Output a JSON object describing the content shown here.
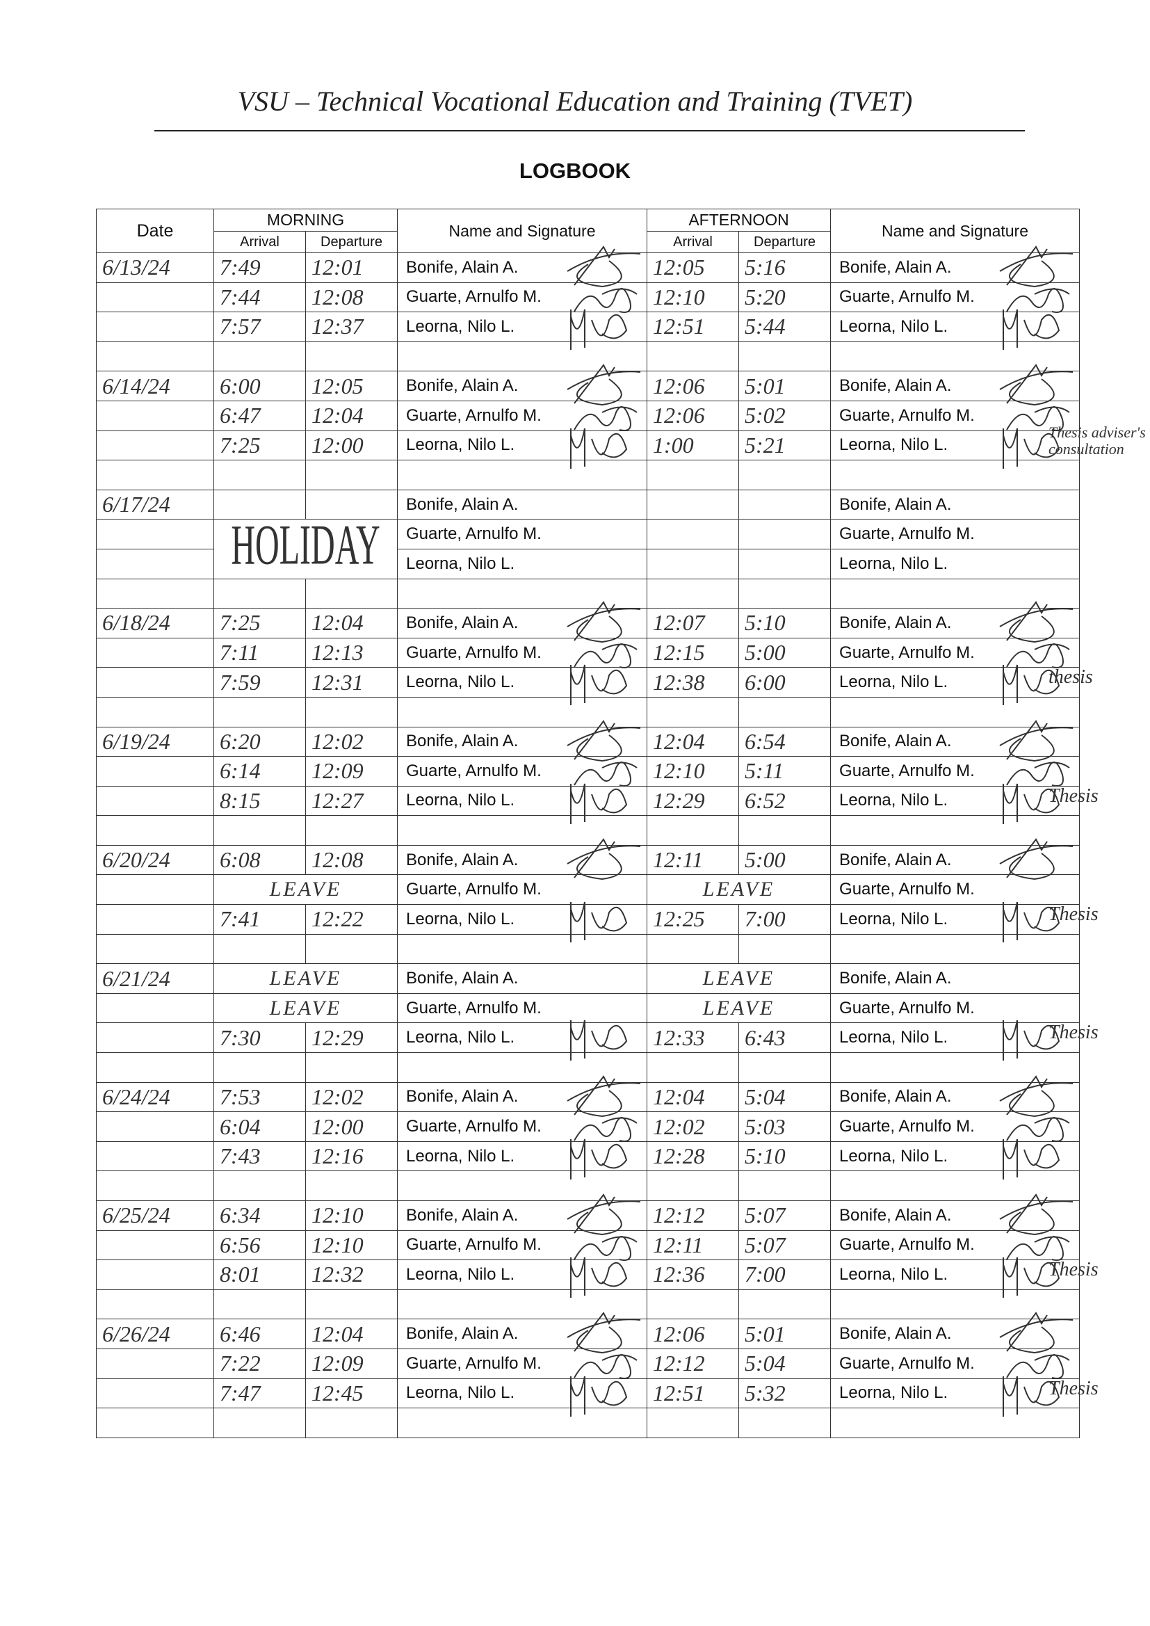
{
  "header": {
    "title": "VSU – Technical Vocational Education and Training (TVET)",
    "subtitle": "LOGBOOK"
  },
  "columns": {
    "date": "Date",
    "morning": "MORNING",
    "afternoon": "AFTERNOON",
    "arrival": "Arrival",
    "departure": "Departure",
    "name_signature": "Name and Signature"
  },
  "people": [
    "Bonife, Alain A.",
    "Guarte, Arnulfo M.",
    "Leorna, Nilo L."
  ],
  "days": [
    {
      "date": "6/13/24",
      "rows": [
        [
          "7:49",
          "12:01",
          "12:05",
          "5:16"
        ],
        [
          "7:44",
          "12:08",
          "12:10",
          "5:20"
        ],
        [
          "7:57",
          "12:37",
          "12:51",
          "5:44"
        ]
      ]
    },
    {
      "date": "6/14/24",
      "note": "Thesis adviser's consultation",
      "rows": [
        [
          "6:00",
          "12:05",
          "12:06",
          "5:01"
        ],
        [
          "6:47",
          "12:04",
          "12:06",
          "5:02"
        ],
        [
          "7:25",
          "12:00",
          "1:00",
          "5:21"
        ]
      ]
    },
    {
      "date": "6/17/24",
      "holiday": "HOLIDAY",
      "rows": [
        [
          "",
          "",
          "",
          ""
        ],
        [
          "",
          "",
          "",
          ""
        ],
        [
          "",
          "",
          "",
          ""
        ]
      ]
    },
    {
      "date": "6/18/24",
      "note": "thesis",
      "rows": [
        [
          "7:25",
          "12:04",
          "12:07",
          "5:10"
        ],
        [
          "7:11",
          "12:13",
          "12:15",
          "5:00"
        ],
        [
          "7:59",
          "12:31",
          "12:38",
          "6:00"
        ]
      ]
    },
    {
      "date": "6/19/24",
      "note": "Thesis",
      "rows": [
        [
          "6:20",
          "12:02",
          "12:04",
          "6:54"
        ],
        [
          "6:14",
          "12:09",
          "12:10",
          "5:11"
        ],
        [
          "8:15",
          "12:27",
          "12:29",
          "6:52"
        ]
      ]
    },
    {
      "date": "6/20/24",
      "note": "Thesis",
      "rows": [
        [
          "6:08",
          "12:08",
          "12:11",
          "5:00"
        ],
        [
          "LEAVE",
          "",
          "LEAVE",
          ""
        ],
        [
          "7:41",
          "12:22",
          "12:25",
          "7:00"
        ]
      ]
    },
    {
      "date": "6/21/24",
      "note": "Thesis",
      "rows": [
        [
          "LEAVE",
          "",
          "LEAVE",
          ""
        ],
        [
          "LEAVE",
          "",
          "LEAVE",
          ""
        ],
        [
          "7:30",
          "12:29",
          "12:33",
          "6:43"
        ]
      ]
    },
    {
      "date": "6/24/24",
      "rows": [
        [
          "7:53",
          "12:02",
          "12:04",
          "5:04"
        ],
        [
          "6:04",
          "12:00",
          "12:02",
          "5:03"
        ],
        [
          "7:43",
          "12:16",
          "12:28",
          "5:10"
        ]
      ]
    },
    {
      "date": "6/25/24",
      "note": "Thesis",
      "rows": [
        [
          "6:34",
          "12:10",
          "12:12",
          "5:07"
        ],
        [
          "6:56",
          "12:10",
          "12:11",
          "5:07"
        ],
        [
          "8:01",
          "12:32",
          "12:36",
          "7:00"
        ]
      ]
    },
    {
      "date": "6/26/24",
      "note": "Thesis",
      "rows": [
        [
          "6:46",
          "12:04",
          "12:06",
          "5:01"
        ],
        [
          "7:22",
          "12:09",
          "12:12",
          "5:04"
        ],
        [
          "7:47",
          "12:45",
          "12:51",
          "5:32"
        ]
      ]
    }
  ]
}
